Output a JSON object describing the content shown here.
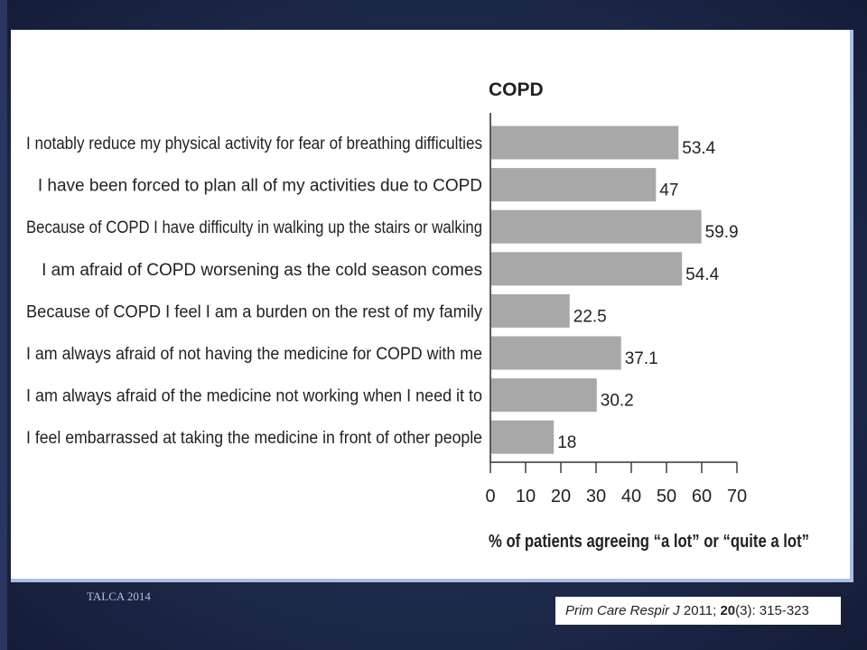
{
  "slide": {
    "footer_text": "TALCA 2014",
    "citation": {
      "journal": "Prim Care Respir J",
      "year": " 2011; ",
      "volume": "20",
      "issue_pages": "(3): 315-323"
    },
    "cut_title": "% of patients agreeing \"a lot\" or \"quite a lot\""
  },
  "colors": {
    "background": "#1f2a4c",
    "panel_border": "#a9bfe6",
    "bar": "#a8a8a8",
    "text": "#222222"
  },
  "chart_data": {
    "type": "bar",
    "orientation": "horizontal",
    "title": "COPD",
    "xlabel": "% of patients agreeing “a lot” or “quite a lot”",
    "ylabel": "",
    "xlim": [
      0,
      70
    ],
    "xticks": [
      0,
      10,
      20,
      30,
      40,
      50,
      60,
      70
    ],
    "grid": false,
    "categories": [
      "I notably reduce my physical activity for fear of breathing difficulties",
      "I have been forced to plan all of my activities due to COPD",
      "Because of COPD I have difficulty in walking up the stairs or walking",
      "I am afraid of COPD worsening as the cold season comes",
      "Because of COPD I feel I am a burden on the rest of my family",
      "I am always afraid of not having the medicine for COPD with me",
      "I am always afraid of the medicine not working when I need it to",
      "I feel embarrassed at taking the medicine in front of other people"
    ],
    "values": [
      53.4,
      47,
      59.9,
      54.4,
      22.5,
      37.1,
      30.2,
      18
    ],
    "value_labels": [
      "53.4",
      "47",
      "59.9",
      "54.4",
      "22.5",
      "37.1",
      "30.2",
      "18"
    ]
  }
}
